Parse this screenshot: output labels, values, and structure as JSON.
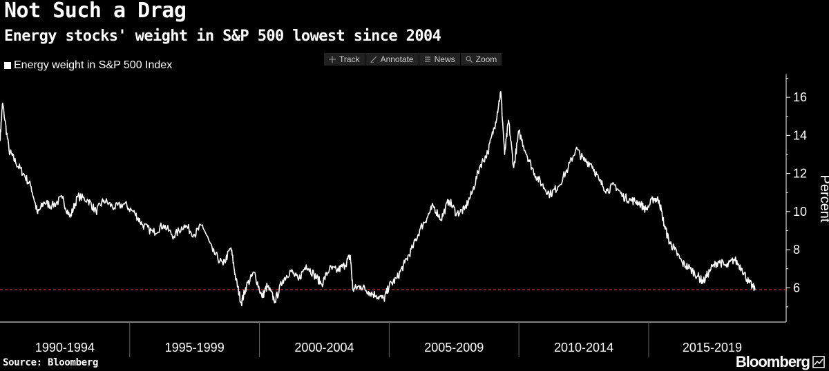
{
  "header": {
    "title": "Not Such a Drag",
    "subtitle": "Energy stocks' weight in S&P 500 lowest since 2004"
  },
  "legend": {
    "label": "Energy weight in S&P 500 Index"
  },
  "toolbar": [
    {
      "label": "Track",
      "icon": "crosshair-icon"
    },
    {
      "label": "Annotate",
      "icon": "pencil-icon"
    },
    {
      "label": "News",
      "icon": "news-icon"
    },
    {
      "label": "Zoom",
      "icon": "magnifier-icon"
    }
  ],
  "footer": {
    "source": "Source: Bloomberg",
    "brand": "Bloomberg"
  },
  "colors": {
    "background": "#000000",
    "line": "#ffffff",
    "reference_line": "#ff3b3b"
  },
  "chart_data": {
    "type": "line",
    "title": "Not Such a Drag",
    "subtitle": "Energy stocks' weight in S&P 500 lowest since 2004",
    "ylabel": "Percent",
    "xlabel": "",
    "ylim": [
      4.2,
      17.2
    ],
    "yticks": [
      6,
      8,
      10,
      12,
      14,
      16
    ],
    "xlim": [
      1990.0,
      2020.3
    ],
    "x_period_labels": [
      "1990-1994",
      "1995-1999",
      "2000-2004",
      "2005-2009",
      "2010-2014",
      "2015-2019"
    ],
    "x_period_boundaries": [
      1995,
      2000,
      2005,
      2010,
      2015
    ],
    "grid": false,
    "legend_position": "top-left",
    "reference_line": {
      "y": 5.9,
      "style": "dashed"
    },
    "series": [
      {
        "name": "Energy weight in S&P 500 Index",
        "points": [
          [
            1990.0,
            13.8
          ],
          [
            1990.1,
            15.7
          ],
          [
            1990.35,
            13.2
          ],
          [
            1990.6,
            12.6
          ],
          [
            1990.9,
            12.0
          ],
          [
            1991.2,
            11.3
          ],
          [
            1991.45,
            9.9
          ],
          [
            1991.7,
            10.5
          ],
          [
            1992.0,
            10.3
          ],
          [
            1992.4,
            10.7
          ],
          [
            1992.7,
            9.7
          ],
          [
            1993.0,
            10.8
          ],
          [
            1993.4,
            10.6
          ],
          [
            1993.7,
            10.0
          ],
          [
            1994.0,
            10.6
          ],
          [
            1994.4,
            10.2
          ],
          [
            1994.8,
            10.4
          ],
          [
            1995.2,
            9.9
          ],
          [
            1995.5,
            9.3
          ],
          [
            1995.9,
            8.9
          ],
          [
            1996.3,
            9.3
          ],
          [
            1996.7,
            8.7
          ],
          [
            1997.1,
            9.3
          ],
          [
            1997.5,
            8.8
          ],
          [
            1997.8,
            9.3
          ],
          [
            1998.2,
            7.9
          ],
          [
            1998.6,
            7.2
          ],
          [
            1998.9,
            8.1
          ],
          [
            1999.1,
            6.4
          ],
          [
            1999.3,
            5.2
          ],
          [
            1999.5,
            6.1
          ],
          [
            1999.8,
            6.8
          ],
          [
            2000.1,
            5.5
          ],
          [
            2000.3,
            6.1
          ],
          [
            2000.6,
            5.3
          ],
          [
            2000.9,
            6.4
          ],
          [
            2001.2,
            6.9
          ],
          [
            2001.5,
            6.4
          ],
          [
            2001.8,
            7.2
          ],
          [
            2002.1,
            6.7
          ],
          [
            2002.4,
            6.2
          ],
          [
            2002.7,
            7.0
          ],
          [
            2003.0,
            6.9
          ],
          [
            2003.3,
            7.2
          ],
          [
            2003.5,
            7.7
          ],
          [
            2003.6,
            5.9
          ],
          [
            2003.9,
            6.1
          ],
          [
            2004.2,
            5.8
          ],
          [
            2004.5,
            5.6
          ],
          [
            2004.8,
            5.4
          ],
          [
            2005.0,
            6.1
          ],
          [
            2005.3,
            6.5
          ],
          [
            2005.6,
            7.3
          ],
          [
            2005.9,
            8.1
          ],
          [
            2006.2,
            9.1
          ],
          [
            2006.5,
            9.8
          ],
          [
            2006.7,
            10.3
          ],
          [
            2007.0,
            9.6
          ],
          [
            2007.3,
            10.6
          ],
          [
            2007.6,
            9.9
          ],
          [
            2007.9,
            10.1
          ],
          [
            2008.2,
            11.0
          ],
          [
            2008.5,
            12.4
          ],
          [
            2008.8,
            13.1
          ],
          [
            2009.1,
            14.7
          ],
          [
            2009.3,
            16.3
          ],
          [
            2009.45,
            13.0
          ],
          [
            2009.6,
            14.8
          ],
          [
            2009.8,
            12.3
          ],
          [
            2010.0,
            14.2
          ],
          [
            2010.3,
            13.0
          ],
          [
            2010.6,
            12.0
          ],
          [
            2010.9,
            11.4
          ],
          [
            2011.2,
            10.9
          ],
          [
            2011.5,
            11.3
          ],
          [
            2011.9,
            12.3
          ],
          [
            2012.2,
            13.3
          ],
          [
            2012.5,
            12.7
          ],
          [
            2012.8,
            12.5
          ],
          [
            2013.1,
            11.6
          ],
          [
            2013.4,
            11.1
          ],
          [
            2013.7,
            11.4
          ],
          [
            2014.0,
            10.8
          ],
          [
            2014.3,
            10.6
          ],
          [
            2014.6,
            10.5
          ],
          [
            2014.9,
            10.1
          ],
          [
            2015.2,
            10.7
          ],
          [
            2015.4,
            10.6
          ],
          [
            2015.6,
            9.3
          ],
          [
            2015.8,
            8.4
          ],
          [
            2016.0,
            8.0
          ],
          [
            2016.3,
            7.3
          ],
          [
            2016.6,
            7.0
          ],
          [
            2016.9,
            6.6
          ],
          [
            2017.1,
            6.3
          ],
          [
            2017.4,
            7.0
          ],
          [
            2017.7,
            7.4
          ],
          [
            2018.0,
            7.1
          ],
          [
            2018.3,
            7.5
          ],
          [
            2018.6,
            7.0
          ],
          [
            2018.85,
            6.3
          ],
          [
            2019.1,
            5.9
          ]
        ]
      }
    ]
  }
}
